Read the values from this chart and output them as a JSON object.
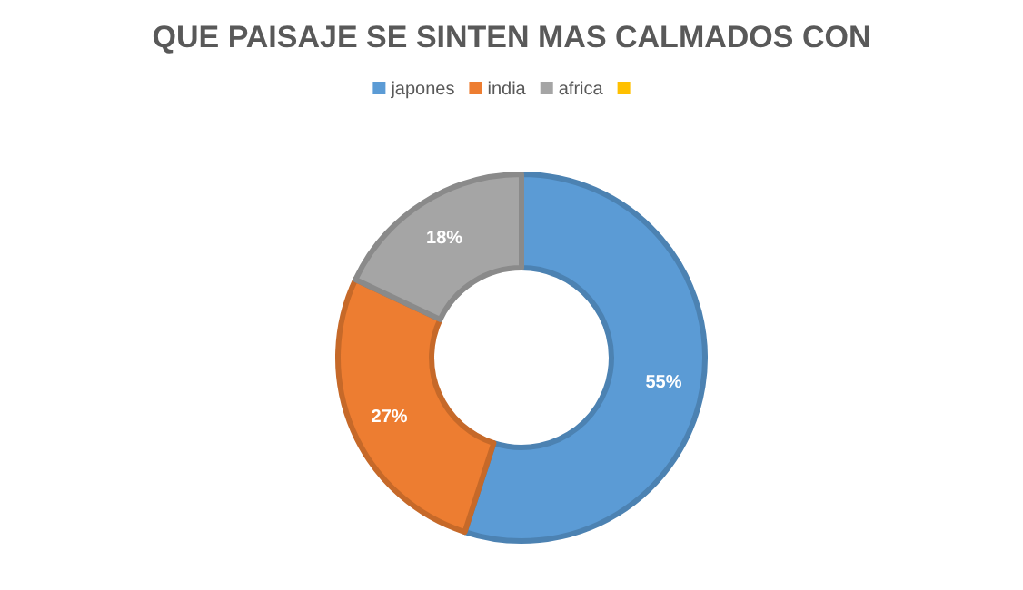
{
  "chart_data": {
    "type": "donut",
    "title": "QUE PAISAJE SE SINTEN MAS CALMADOS CON",
    "categories": [
      "japones",
      "india",
      "africa",
      null
    ],
    "values": [
      55,
      27,
      18,
      0
    ],
    "colors": [
      "#5b9bd5",
      "#ed7d31",
      "#a5a5a5",
      "#ffc000"
    ],
    "value_labels": [
      "55%",
      "27%",
      "18%",
      null
    ],
    "legend": "top"
  }
}
